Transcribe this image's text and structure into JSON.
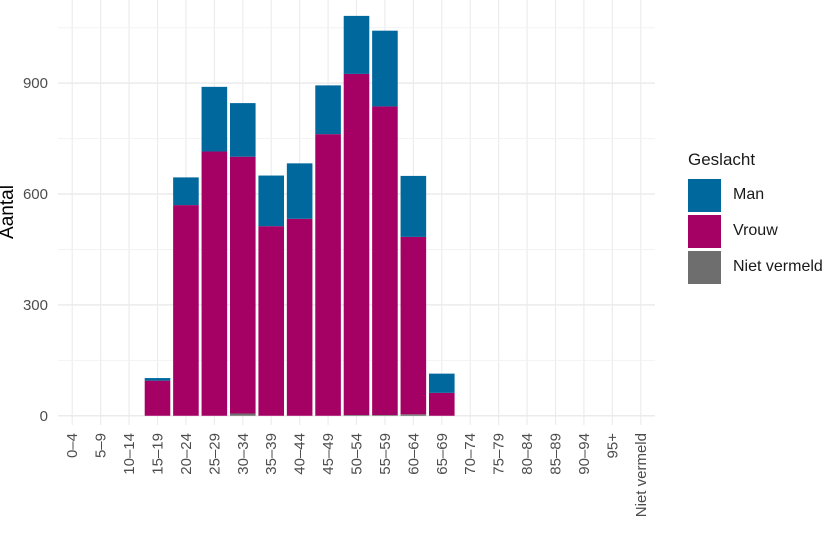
{
  "chart_data": {
    "type": "bar",
    "stacked": true,
    "categories": [
      "0–4",
      "5–9",
      "10–14",
      "15–19",
      "20–24",
      "25–29",
      "30–34",
      "35–39",
      "40–44",
      "45–49",
      "50–54",
      "55–59",
      "60–64",
      "65–69",
      "70–74",
      "75–79",
      "80–84",
      "85–89",
      "90–94",
      "95+",
      "Niet vermeld"
    ],
    "series": [
      {
        "name": "Niet vermeld",
        "color": "#6e6e6e",
        "values": [
          0,
          0,
          0,
          0,
          0,
          0,
          6,
          0,
          0,
          0,
          2,
          2,
          4,
          0,
          0,
          0,
          0,
          0,
          0,
          0,
          0
        ]
      },
      {
        "name": "Vrouw",
        "color": "#a50064",
        "values": [
          0,
          0,
          0,
          95,
          570,
          715,
          695,
          513,
          533,
          762,
          923,
          835,
          480,
          62,
          0,
          0,
          0,
          0,
          0,
          0,
          0
        ]
      },
      {
        "name": "Man",
        "color": "#00689d",
        "values": [
          0,
          0,
          0,
          7,
          75,
          175,
          145,
          137,
          150,
          132,
          157,
          205,
          165,
          52,
          0,
          0,
          0,
          0,
          0,
          0,
          0
        ]
      }
    ],
    "ylabel": "Aantal",
    "xlabel": "",
    "ylim": [
      -25,
      1125
    ],
    "yticks": [
      0,
      300,
      600,
      900
    ],
    "legend": {
      "title": "Geslacht",
      "position": "right",
      "items": [
        "Man",
        "Vrouw",
        "Niet vermeld"
      ]
    },
    "grid": true
  }
}
